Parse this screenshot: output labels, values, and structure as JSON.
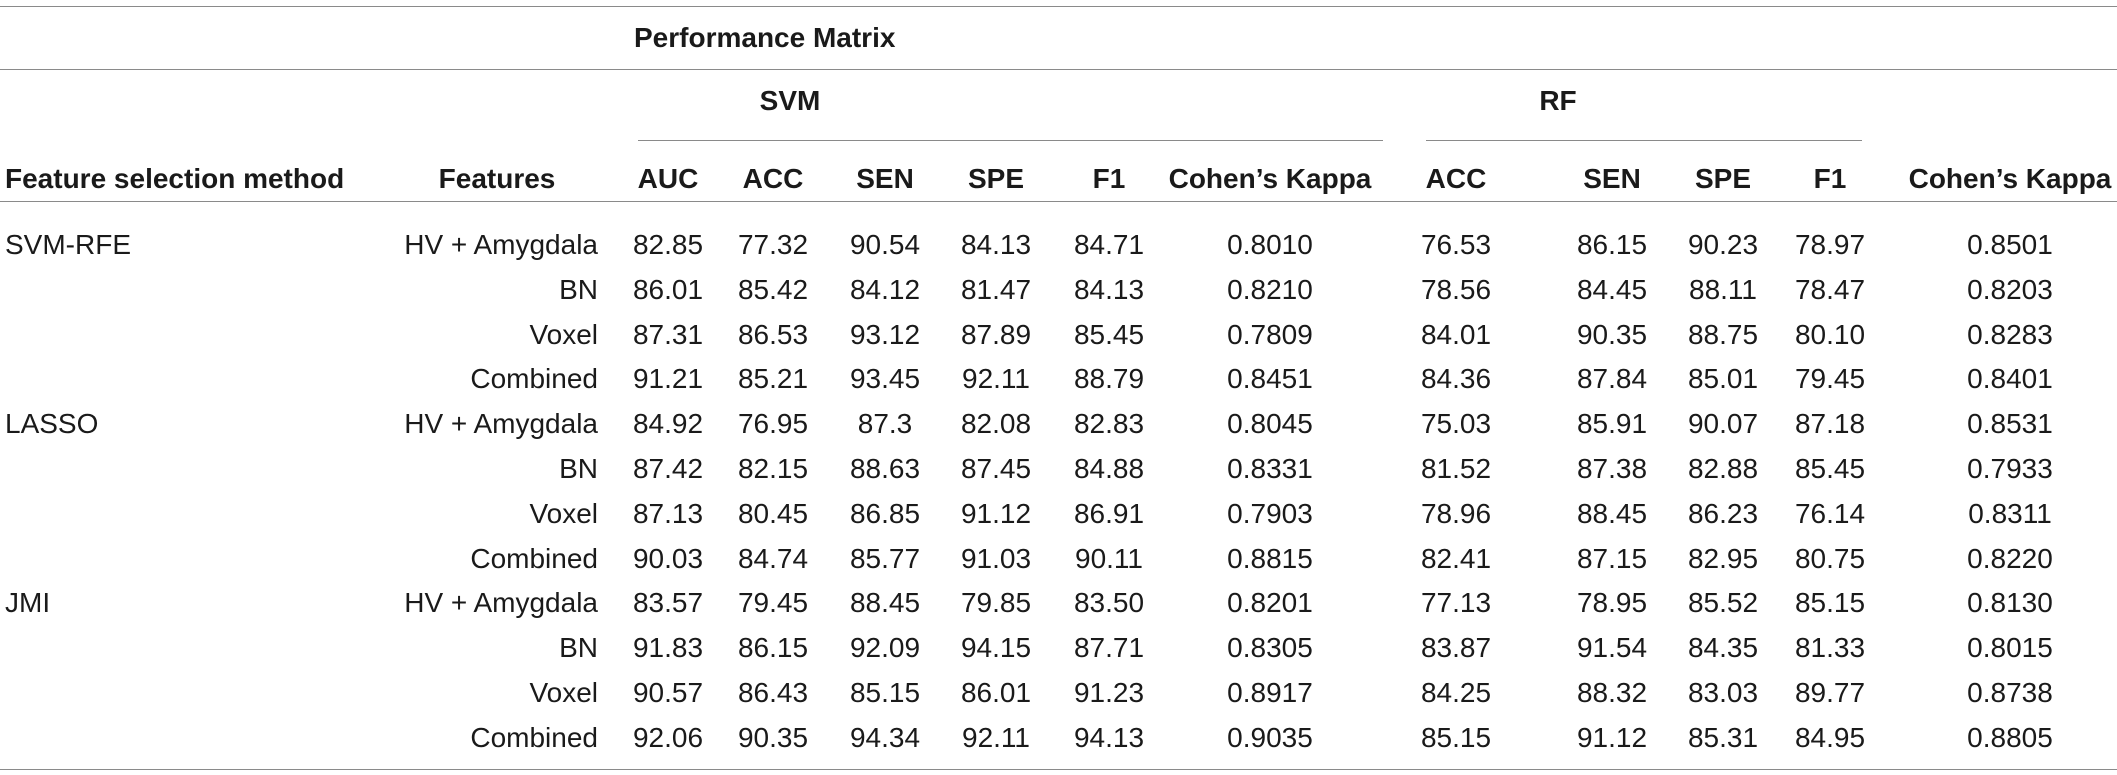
{
  "header": {
    "super_title": "Performance Matrix",
    "svm_group": "SVM",
    "rf_group": "RF",
    "col_method": "Feature selection method",
    "col_features": "Features",
    "svm_cols": [
      "AUC",
      "ACC",
      "SEN",
      "SPE",
      "F1",
      "Cohen’s Kappa"
    ],
    "rf_cols": [
      "ACC",
      "SEN",
      "SPE",
      "F1",
      "Cohen’s Kappa"
    ]
  },
  "rows": [
    {
      "method": "SVM-RFE",
      "feature": "HV + Amygdala",
      "svm": [
        "82.85",
        "77.32",
        "90.54",
        "84.13",
        "84.71",
        "0.8010"
      ],
      "rf": [
        "76.53",
        "86.15",
        "90.23",
        "78.97",
        "0.8501"
      ]
    },
    {
      "method": "",
      "feature": "BN",
      "svm": [
        "86.01",
        "85.42",
        "84.12",
        "81.47",
        "84.13",
        "0.8210"
      ],
      "rf": [
        "78.56",
        "84.45",
        "88.11",
        "78.47",
        "0.8203"
      ]
    },
    {
      "method": "",
      "feature": "Voxel",
      "svm": [
        "87.31",
        "86.53",
        "93.12",
        "87.89",
        "85.45",
        "0.7809"
      ],
      "rf": [
        "84.01",
        "90.35",
        "88.75",
        "80.10",
        "0.8283"
      ]
    },
    {
      "method": "",
      "feature": "Combined",
      "svm": [
        "91.21",
        "85.21",
        "93.45",
        "92.11",
        "88.79",
        "0.8451"
      ],
      "rf": [
        "84.36",
        "87.84",
        "85.01",
        "79.45",
        "0.8401"
      ]
    },
    {
      "method": "LASSO",
      "feature": "HV + Amygdala",
      "svm": [
        "84.92",
        "76.95",
        "87.3",
        "82.08",
        "82.83",
        "0.8045"
      ],
      "rf": [
        "75.03",
        "85.91",
        "90.07",
        "87.18",
        "0.8531"
      ]
    },
    {
      "method": "",
      "feature": "BN",
      "svm": [
        "87.42",
        "82.15",
        "88.63",
        "87.45",
        "84.88",
        "0.8331"
      ],
      "rf": [
        "81.52",
        "87.38",
        "82.88",
        "85.45",
        "0.7933"
      ]
    },
    {
      "method": "",
      "feature": "Voxel",
      "svm": [
        "87.13",
        "80.45",
        "86.85",
        "91.12",
        "86.91",
        "0.7903"
      ],
      "rf": [
        "78.96",
        "88.45",
        "86.23",
        "76.14",
        "0.8311"
      ]
    },
    {
      "method": "",
      "feature": "Combined",
      "svm": [
        "90.03",
        "84.74",
        "85.77",
        "91.03",
        "90.11",
        "0.8815"
      ],
      "rf": [
        "82.41",
        "87.15",
        "82.95",
        "80.75",
        "0.8220"
      ]
    },
    {
      "method": "JMI",
      "feature": "HV + Amygdala",
      "svm": [
        "83.57",
        "79.45",
        "88.45",
        "79.85",
        "83.50",
        "0.8201"
      ],
      "rf": [
        "77.13",
        "78.95",
        "85.52",
        "85.15",
        "0.8130"
      ]
    },
    {
      "method": "",
      "feature": "BN",
      "svm": [
        "91.83",
        "86.15",
        "92.09",
        "94.15",
        "87.71",
        "0.8305"
      ],
      "rf": [
        "83.87",
        "91.54",
        "84.35",
        "81.33",
        "0.8015"
      ]
    },
    {
      "method": "",
      "feature": "Voxel",
      "svm": [
        "90.57",
        "86.43",
        "85.15",
        "86.01",
        "91.23",
        "0.8917"
      ],
      "rf": [
        "84.25",
        "88.32",
        "83.03",
        "89.77",
        "0.8738"
      ]
    },
    {
      "method": "",
      "feature": "Combined",
      "svm": [
        "92.06",
        "90.35",
        "94.34",
        "92.11",
        "94.13",
        "0.9035"
      ],
      "rf": [
        "85.15",
        "91.12",
        "85.31",
        "84.95",
        "0.8805"
      ]
    }
  ]
}
